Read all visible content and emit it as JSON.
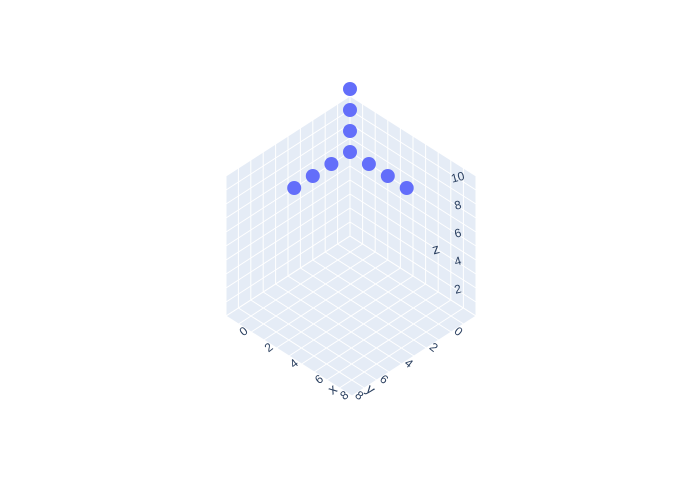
{
  "chart_data": {
    "type": "scatter3d",
    "title": "",
    "marker_color": "#636efa",
    "background": {
      "plane_color": "#e5ecf6",
      "grid_color": "#ffffff",
      "label_color": "#2a3f5f"
    },
    "axes": {
      "x": {
        "label": "x",
        "range": [
          0,
          10
        ],
        "ticks": [
          0,
          2,
          4,
          6,
          8
        ]
      },
      "y": {
        "label": "y",
        "range": [
          0,
          10
        ],
        "ticks": [
          0,
          2,
          4,
          6,
          8
        ]
      },
      "z": {
        "label": "z",
        "range": [
          0,
          10
        ],
        "ticks": [
          2,
          4,
          6,
          8,
          10
        ]
      }
    },
    "grid": true,
    "legend": "none",
    "points": [
      {
        "x": 0,
        "y": 0,
        "z": 6
      },
      {
        "x": 0,
        "y": 0,
        "z": 7.5
      },
      {
        "x": 0,
        "y": 0,
        "z": 9
      },
      {
        "x": 0,
        "y": 0,
        "z": 10.5
      },
      {
        "x": 1.5,
        "y": 0,
        "z": 6
      },
      {
        "x": 3,
        "y": 0,
        "z": 6
      },
      {
        "x": 4.5,
        "y": 0,
        "z": 6
      },
      {
        "x": 0,
        "y": 1.5,
        "z": 6
      },
      {
        "x": 0,
        "y": 3,
        "z": 6
      },
      {
        "x": 0,
        "y": 4.5,
        "z": 6
      }
    ]
  }
}
